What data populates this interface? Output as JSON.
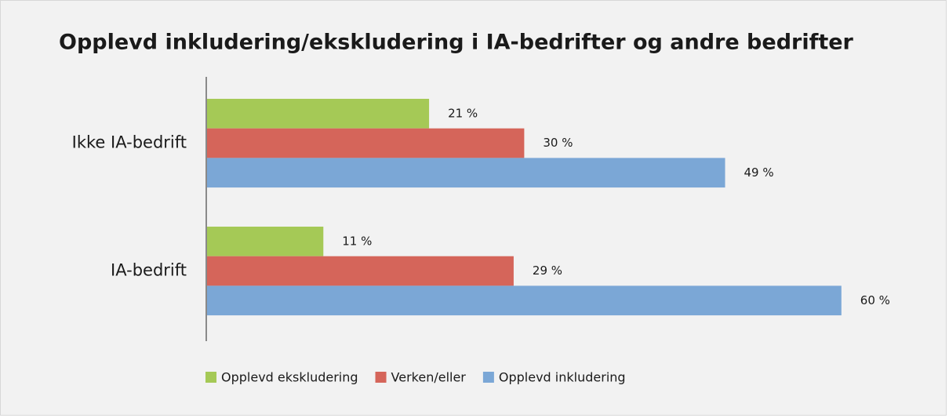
{
  "chart_data": {
    "type": "bar",
    "orientation": "horizontal",
    "title": "Opplevd inkludering/ekskludering i IA-bedrifter og andre bedrifter",
    "categories": [
      "Ikke IA-bedrift",
      "IA-bedrift"
    ],
    "series": [
      {
        "name": "Opplevd ekskludering",
        "color": "#a5c956",
        "values": [
          21,
          11
        ],
        "value_labels": [
          "21 %",
          "11 %"
        ]
      },
      {
        "name": "Verken/eller",
        "color": "#d5655a",
        "values": [
          30,
          29
        ],
        "value_labels": [
          "30 %",
          "29 %"
        ]
      },
      {
        "name": "Opplevd inkludering",
        "color": "#7ba7d6",
        "values": [
          49,
          60
        ],
        "value_labels": [
          "49 %",
          "60 %"
        ]
      }
    ],
    "legend": "bottom"
  }
}
